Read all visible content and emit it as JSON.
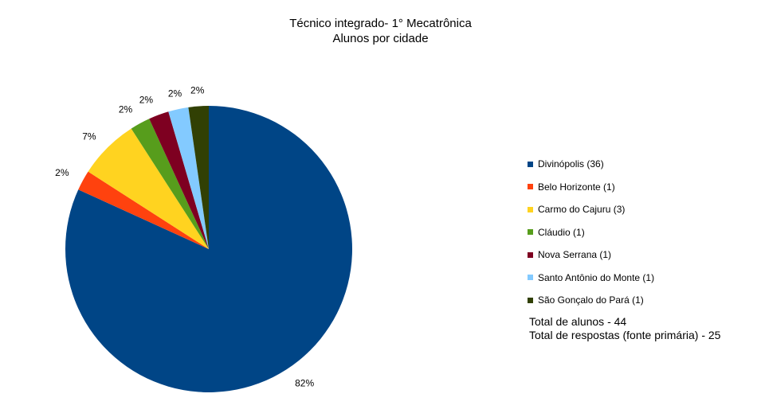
{
  "chart_data": {
    "type": "pie",
    "title": "Técnico integrado- 1° Mecatrônica",
    "subtitle": "Alunos por cidade",
    "slices": [
      {
        "label": "Divinópolis",
        "legend": "Divinópolis (36)",
        "value": 36,
        "pct_label": "82%",
        "color": "#004586"
      },
      {
        "label": "Belo Horizonte",
        "legend": "Belo Horizonte (1)",
        "value": 1,
        "pct_label": "2%",
        "color": "#ff420e"
      },
      {
        "label": "Carmo do Cajuru",
        "legend": "Carmo do Cajuru (3)",
        "value": 3,
        "pct_label": "7%",
        "color": "#ffd320"
      },
      {
        "label": "Cláudio",
        "legend": "Cláudio (1)",
        "value": 1,
        "pct_label": "2%",
        "color": "#579d1c"
      },
      {
        "label": "Nova Serrana",
        "legend": "Nova Serrana (1)",
        "value": 1,
        "pct_label": "2%",
        "color": "#7e0021"
      },
      {
        "label": "Santo Antônio do Monte",
        "legend": "Santo Antônio do Monte (1)",
        "value": 1,
        "pct_label": "2%",
        "color": "#83caff"
      },
      {
        "label": "São Gonçalo do Pará",
        "legend": "São Gonçalo do Pará  (1)",
        "value": 1,
        "pct_label": "2%",
        "color": "#314004"
      }
    ],
    "legend_position": "right",
    "notes": [
      "Total de alunos - 44",
      "Total de respostas (fonte primária) - 25"
    ]
  }
}
